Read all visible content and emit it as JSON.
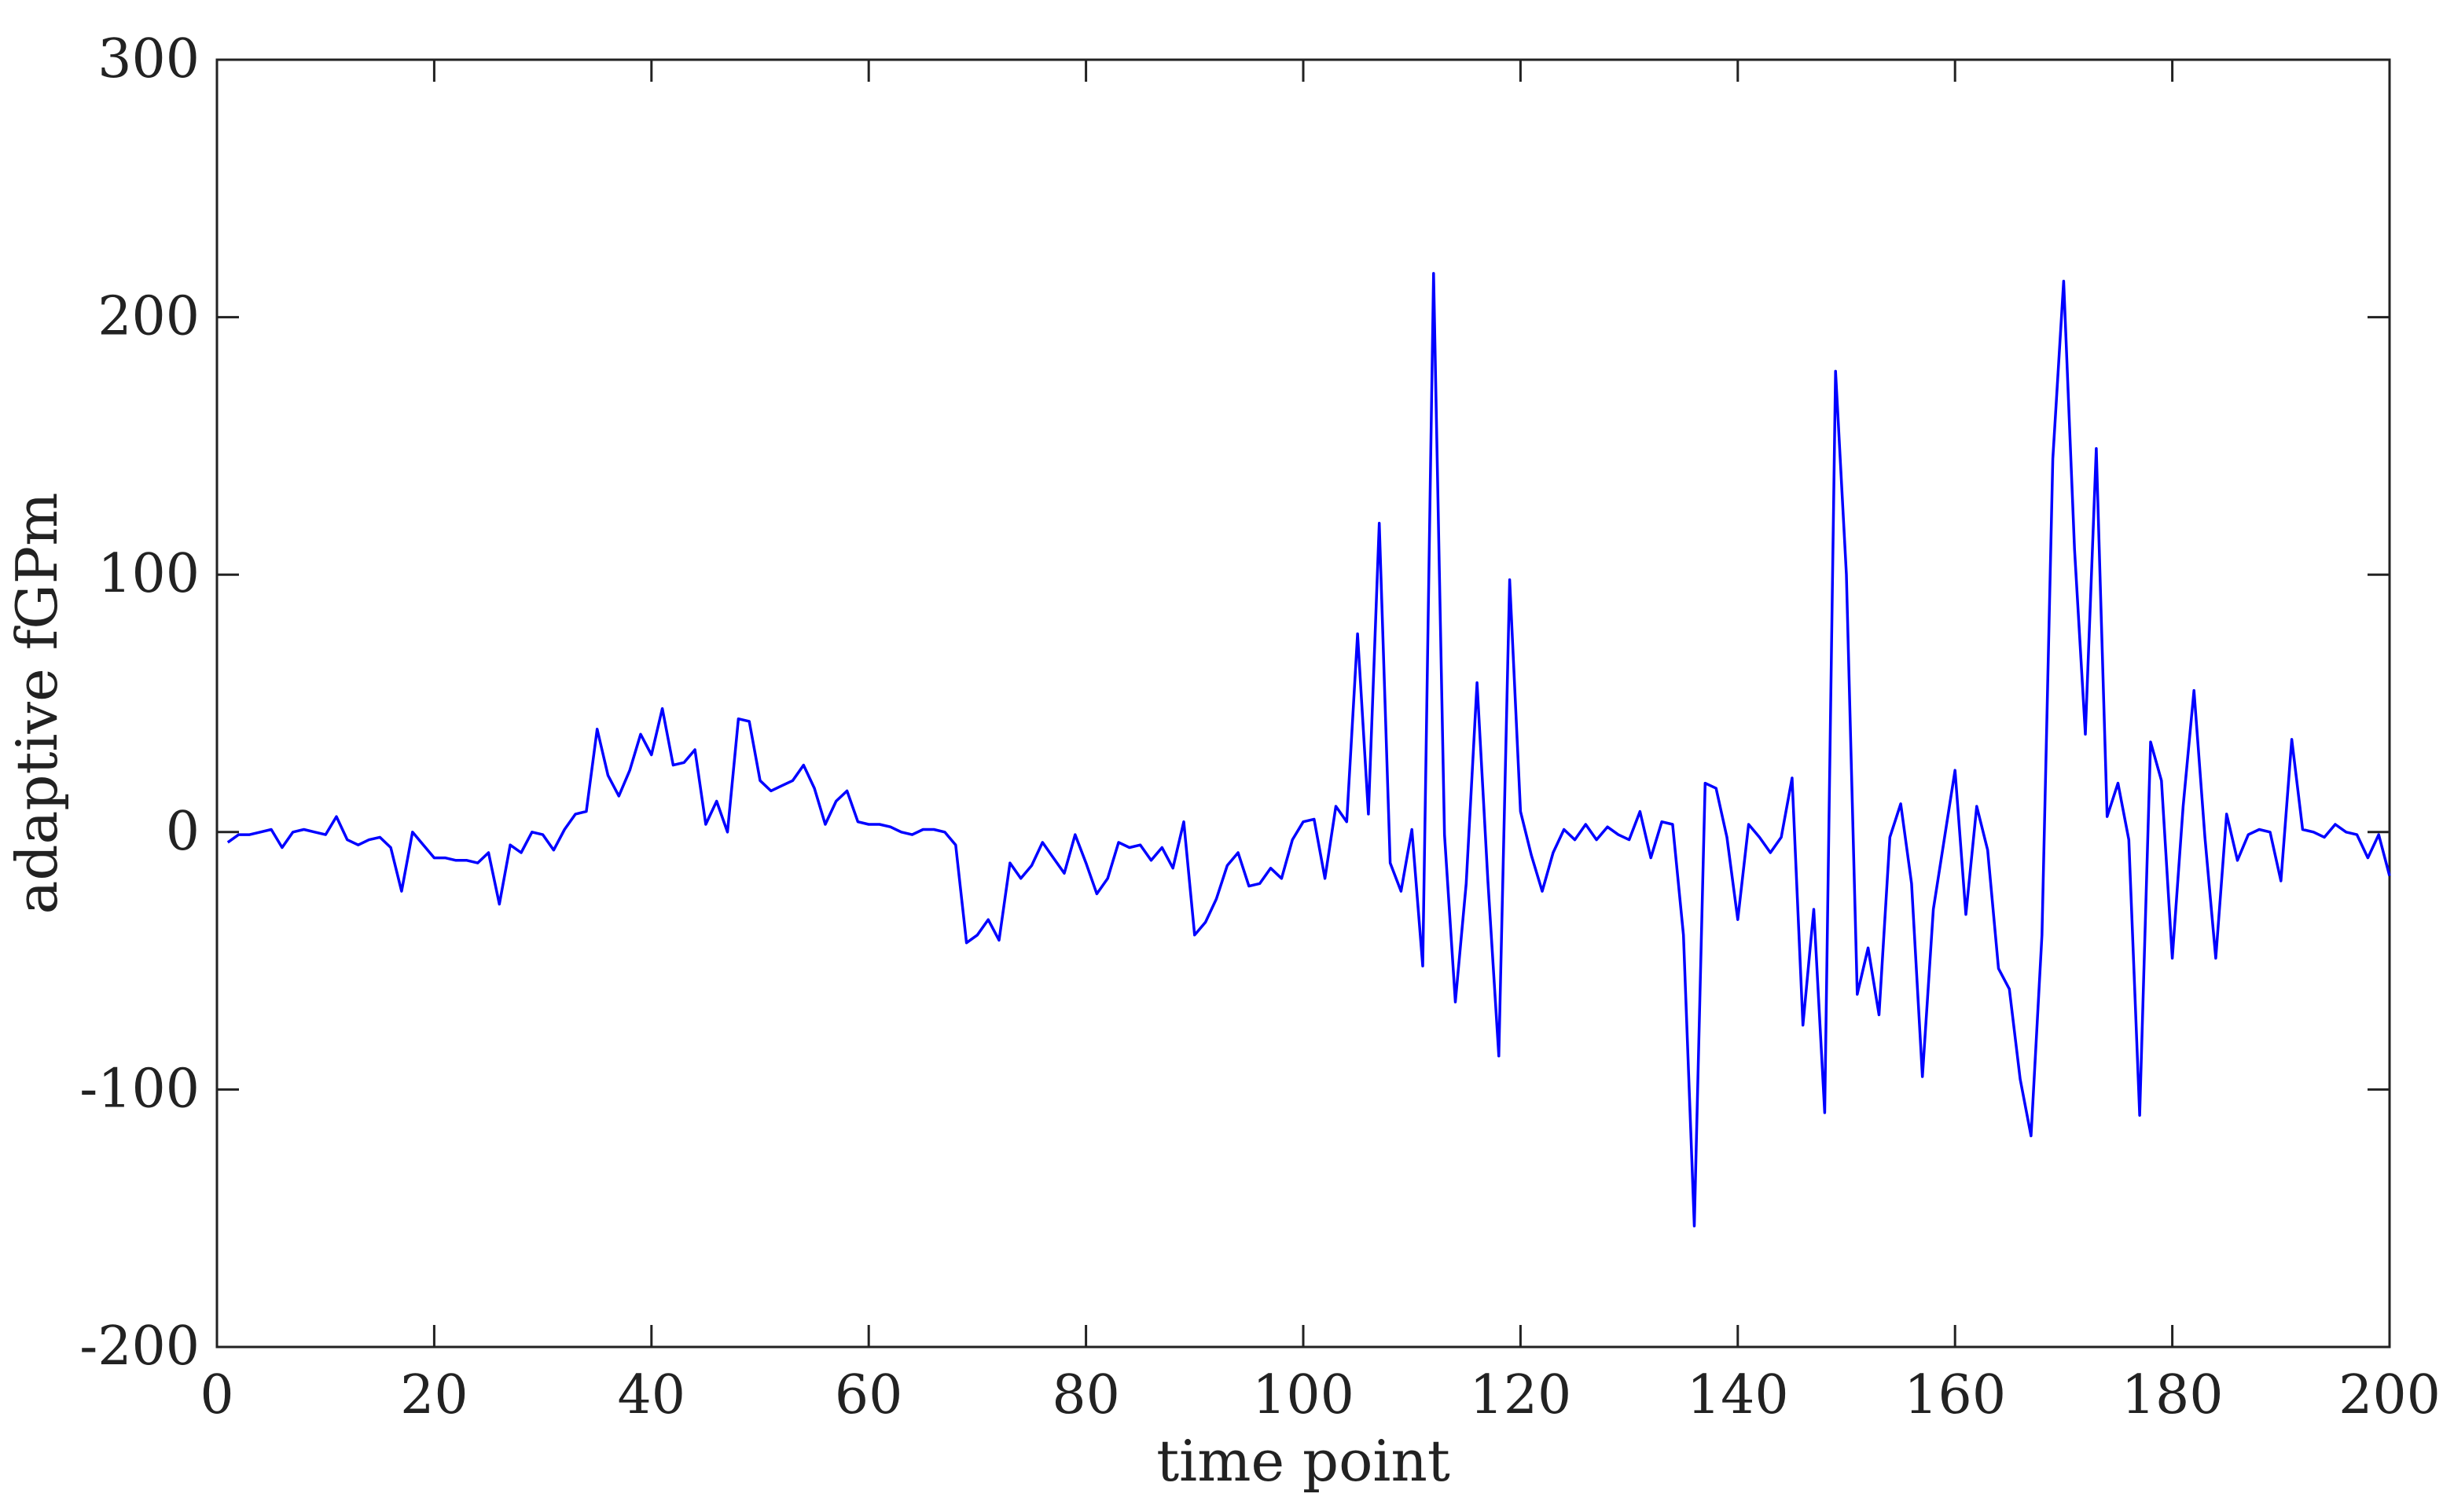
{
  "chart_data": {
    "type": "line",
    "title": "",
    "xlabel": "time point",
    "ylabel": "adaptive fGPm",
    "xlim": [
      0,
      200
    ],
    "ylim": [
      -200,
      300
    ],
    "xticks": [
      0,
      20,
      40,
      60,
      80,
      100,
      120,
      140,
      160,
      180,
      200
    ],
    "yticks": [
      -200,
      -100,
      0,
      100,
      200,
      300
    ],
    "xtick_labels": [
      "0",
      "20",
      "40",
      "60",
      "80",
      "100",
      "120",
      "140",
      "160",
      "180",
      "200"
    ],
    "ytick_labels": [
      "-200",
      "-100",
      "0",
      "100",
      "200",
      "300"
    ],
    "grid": false,
    "legend": "none",
    "series": [
      {
        "color": "#0000ff",
        "x": [
          1,
          2,
          3,
          4,
          5,
          6,
          7,
          8,
          9,
          10,
          11,
          12,
          13,
          14,
          15,
          16,
          17,
          18,
          19,
          20,
          21,
          22,
          23,
          24,
          25,
          26,
          27,
          28,
          29,
          30,
          31,
          32,
          33,
          34,
          35,
          36,
          37,
          38,
          39,
          40,
          41,
          42,
          43,
          44,
          45,
          46,
          47,
          48,
          49,
          50,
          51,
          52,
          53,
          54,
          55,
          56,
          57,
          58,
          59,
          60,
          61,
          62,
          63,
          64,
          65,
          66,
          67,
          68,
          69,
          70,
          71,
          72,
          73,
          74,
          75,
          76,
          77,
          78,
          79,
          80,
          81,
          82,
          83,
          84,
          85,
          86,
          87,
          88,
          89,
          90,
          91,
          92,
          93,
          94,
          95,
          96,
          97,
          98,
          99,
          100,
          101,
          102,
          103,
          104,
          105,
          106,
          107,
          108,
          109,
          110,
          111,
          112,
          113,
          114,
          115,
          116,
          117,
          118,
          119,
          120,
          121,
          122,
          123,
          124,
          125,
          126,
          127,
          128,
          129,
          130,
          131,
          132,
          133,
          134,
          135,
          136,
          137,
          138,
          139,
          140,
          141,
          142,
          143,
          144,
          145,
          146,
          147,
          148,
          149,
          150,
          151,
          152,
          153,
          154,
          155,
          156,
          157,
          158,
          159,
          160,
          161,
          162,
          163,
          164,
          165,
          166,
          167,
          168,
          169,
          170,
          171,
          172,
          173,
          174,
          175,
          176,
          177,
          178,
          179,
          180,
          181,
          182,
          183,
          184,
          185,
          186,
          187,
          188,
          189,
          190,
          191,
          192,
          193,
          194,
          195,
          196,
          197,
          198,
          199,
          200
        ],
        "values": [
          -4,
          -1,
          -1,
          0,
          1,
          -6,
          0,
          1,
          0,
          -1,
          6,
          -3,
          -5,
          -3,
          -2,
          -6,
          -23,
          0,
          -5,
          -10,
          -10,
          -11,
          -11,
          -12,
          -8,
          -28,
          -5,
          -8,
          0,
          -1,
          -7,
          1,
          7,
          8,
          40,
          22,
          14,
          24,
          38,
          30,
          48,
          26,
          27,
          32,
          3,
          12,
          0,
          44,
          43,
          20,
          16,
          18,
          20,
          26,
          17,
          3,
          12,
          16,
          4,
          3,
          3,
          2,
          0,
          -1,
          1,
          1,
          0,
          -5,
          -43,
          -40,
          -34,
          -42,
          -12,
          -18,
          -13,
          -4,
          -10,
          -16,
          -1,
          -12,
          -24,
          -18,
          -4,
          -6,
          -5,
          -11,
          -6,
          -14,
          4,
          -40,
          -35,
          -26,
          -13,
          -8,
          -21,
          -20,
          -14,
          -18,
          -3,
          4,
          5,
          -18,
          10,
          4,
          77,
          7,
          120,
          -12,
          -23,
          1,
          -52,
          217,
          -1,
          -66,
          -20,
          58,
          -19,
          -87,
          98,
          8,
          -9,
          -23,
          -8,
          1,
          -3,
          3,
          -3,
          2,
          -1,
          -3,
          8,
          -10,
          4,
          3,
          -40,
          -153,
          19,
          17,
          -2,
          -34,
          3,
          -2,
          -8,
          -2,
          21,
          -75,
          -30,
          -109,
          179,
          100,
          -63,
          -45,
          -71,
          -2,
          11,
          -20,
          -95,
          -30,
          -3,
          24,
          -32,
          10,
          -7,
          -53,
          -61,
          -96,
          -118,
          -40,
          145,
          214,
          110,
          38,
          149,
          6,
          19,
          -3,
          -110,
          35,
          20,
          -49,
          10,
          55,
          -2,
          -49,
          7,
          -11,
          -1,
          1,
          0,
          -19,
          36,
          1,
          0,
          -2,
          3,
          0,
          -1,
          -10,
          -1,
          -17
        ]
      }
    ]
  }
}
